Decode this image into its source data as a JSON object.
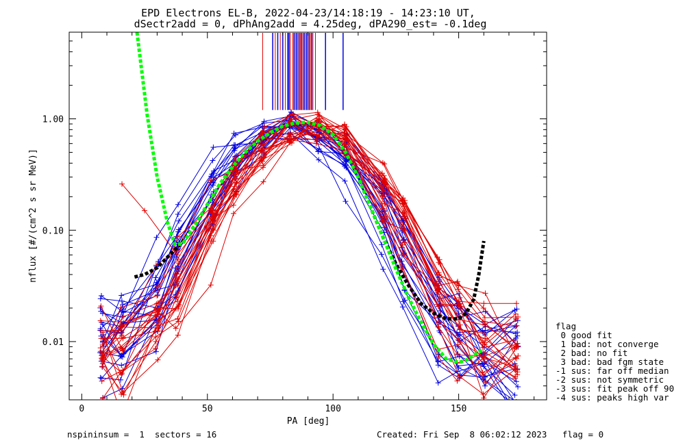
{
  "chart_data": {
    "type": "line",
    "title_line1": "EPD Electrons EL-B, 2022-04-23/14:18:19 - 14:23:10 UT,",
    "title_line2": "dSectr2add = 0, dPhAng2add = 4.25deg, dPA290_est=  -0.1deg",
    "xlabel": "PA [deg]",
    "ylabel": "nflux [#/(cm^2 s sr MeV)]",
    "xlim": [
      -5,
      185
    ],
    "ylim": [
      0.003,
      6.0
    ],
    "yscale": "log",
    "x_ticks": [
      0,
      50,
      100,
      150
    ],
    "y_ticks": [
      {
        "value": 0.01,
        "label": "0.01"
      },
      {
        "value": 0.1,
        "label": "0.10"
      },
      {
        "value": 1.0,
        "label": "1.00"
      }
    ],
    "colors": {
      "red": "#e00000",
      "blue": "#0000e0",
      "green": "#00ff00",
      "black": "#000000"
    },
    "legend": {
      "placement": "right",
      "title": "flag",
      "items": [
        " 0 good fit",
        " 1 bad: not converge",
        " 2 bad: no fit",
        " 3 bad: bad fgm state",
        "-1 sus: far off median",
        "-2 sus: not symmetric",
        "-3 sus: fit peak off 90",
        "-4 sus: peaks high var"
      ]
    },
    "footer": {
      "left": "nspininsum =  1  sectors = 16",
      "right": "Created: Fri Sep  8 06:02:12 2023   flag = 0"
    },
    "peak_markers": {
      "y_from": 1.2,
      "red": [
        72,
        77,
        79,
        81,
        83,
        84,
        85,
        86,
        87,
        88,
        89,
        90,
        91,
        92,
        93
      ],
      "blue": [
        76,
        78,
        80,
        82,
        82.5,
        84.5,
        85.5,
        86.5,
        87.5,
        88.5,
        89.5,
        90.5,
        91.5,
        97,
        104
      ]
    },
    "series_red_example": [
      {
        "x": [
          16,
          25,
          38,
          52,
          61,
          72,
          83,
          94,
          105,
          120,
          128,
          142,
          150,
          160,
          173
        ],
        "y": [
          0.26,
          0.15,
          0.06,
          0.15,
          0.45,
          0.75,
          0.92,
          0.85,
          0.5,
          0.12,
          0.06,
          0.03,
          0.023,
          0.022,
          0.022
        ]
      }
    ],
    "green_fit": {
      "x": [
        22,
        26,
        30,
        34,
        37,
        40,
        45,
        50,
        55,
        60,
        65,
        70,
        75,
        80,
        85,
        90,
        95,
        100,
        105,
        110,
        115,
        120,
        125,
        130,
        135,
        140,
        145,
        150,
        153,
        157,
        160
      ],
      "y": [
        6.0,
        1.1,
        0.3,
        0.12,
        0.075,
        0.075,
        0.11,
        0.17,
        0.26,
        0.37,
        0.5,
        0.63,
        0.75,
        0.86,
        0.92,
        0.93,
        0.87,
        0.72,
        0.5,
        0.3,
        0.16,
        0.085,
        0.045,
        0.025,
        0.015,
        0.0095,
        0.007,
        0.0065,
        0.0068,
        0.0078,
        0.0085
      ]
    },
    "black_fit": {
      "x": [
        21,
        25,
        30,
        35,
        40,
        45,
        50,
        55,
        60,
        65,
        70,
        75,
        80,
        85,
        90,
        95,
        100,
        105,
        110,
        115,
        120,
        125,
        130,
        135,
        140,
        145,
        150,
        153,
        156,
        158,
        160
      ],
      "y": [
        0.038,
        0.04,
        0.046,
        0.06,
        0.078,
        0.11,
        0.17,
        0.26,
        0.37,
        0.5,
        0.63,
        0.75,
        0.86,
        0.92,
        0.93,
        0.87,
        0.72,
        0.5,
        0.3,
        0.16,
        0.085,
        0.05,
        0.032,
        0.022,
        0.018,
        0.016,
        0.016,
        0.018,
        0.024,
        0.04,
        0.08
      ]
    }
  }
}
